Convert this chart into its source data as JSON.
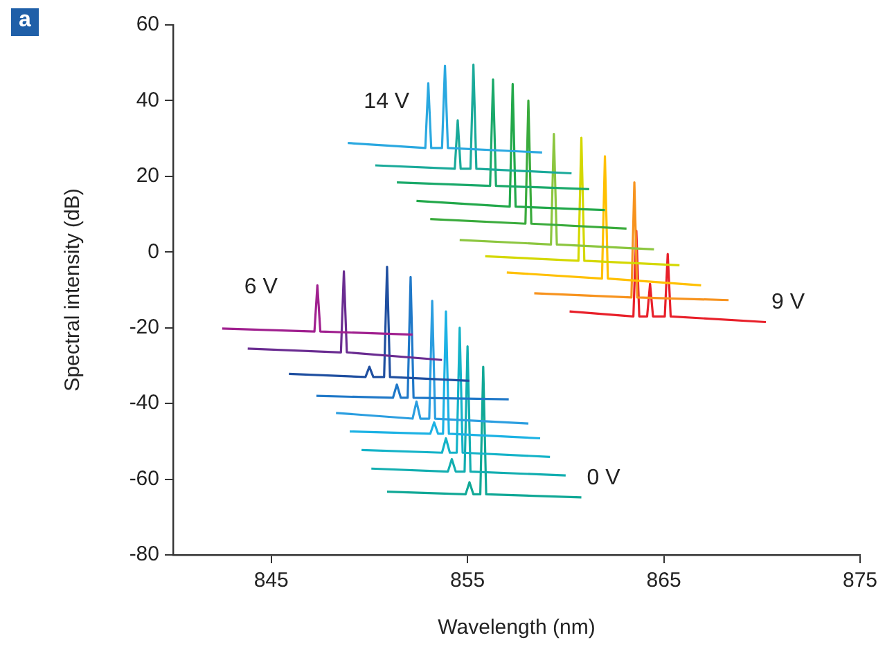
{
  "chart_data": {
    "type": "line",
    "xlabel": "Wavelength (nm)",
    "ylabel": "Spectral intensity (dB)",
    "xlim": [
      840,
      875
    ],
    "xticks": [
      845,
      855,
      865,
      875
    ],
    "ylim": [
      -80,
      60
    ],
    "yticks": [
      -80,
      -60,
      -40,
      -20,
      0,
      20,
      40,
      60
    ],
    "grid": false,
    "legend": false,
    "marker": "none",
    "line_style": "solid",
    "annotations": [
      "a"
    ],
    "series": [
      {
        "name": "6 V",
        "color": "#a0208f",
        "x": [
          842.5,
          847.2,
          847.35,
          847.5,
          852.2
        ],
        "values": [
          -20.2,
          -21,
          -8.8,
          -21,
          -21.8
        ]
      },
      {
        "color": "#6a2c91",
        "x": [
          843.8,
          848.55,
          848.7,
          848.85,
          853.7
        ],
        "values": [
          -25.5,
          -26.5,
          -5.1,
          -26.5,
          -28.5
        ]
      },
      {
        "color": "#1f4fa0",
        "x": [
          845.9,
          849.8,
          850.0,
          850.2,
          850.75,
          850.9,
          851.05,
          855.1
        ],
        "values": [
          -32.2,
          -33,
          -30.3,
          -33,
          -33,
          -3.9,
          -33,
          -34.0
        ]
      },
      {
        "color": "#1f78c8",
        "x": [
          847.3,
          851.2,
          851.4,
          851.6,
          851.95,
          852.1,
          852.25,
          857.1
        ],
        "values": [
          -38.0,
          -38.5,
          -35,
          -38.5,
          -38.5,
          -6.6,
          -38.5,
          -38.9
        ]
      },
      {
        "color": "#2b9ee0",
        "x": [
          848.3,
          852.2,
          852.4,
          852.6,
          853.05,
          853.2,
          853.35,
          858.1
        ],
        "values": [
          -42.5,
          -44,
          -39.5,
          -44,
          -44,
          -12.9,
          -44,
          -45.3
        ]
      },
      {
        "color": "#1cb2e4",
        "x": [
          849.0,
          853.1,
          853.3,
          853.5,
          853.75,
          853.9,
          854.05,
          858.7
        ],
        "values": [
          -47.4,
          -48,
          -45,
          -48,
          -48,
          -15.7,
          -48,
          -49.2
        ]
      },
      {
        "color": "#14b3c8",
        "x": [
          849.6,
          853.7,
          853.9,
          854.1,
          854.45,
          854.6,
          854.75,
          859.2
        ],
        "values": [
          -52.3,
          -53,
          -49.2,
          -53,
          -53,
          -20,
          -53,
          -54.1
        ]
      },
      {
        "color": "#12aeb0",
        "x": [
          850.1,
          854.0,
          854.2,
          854.4,
          854.85,
          855.0,
          855.15,
          860.0
        ],
        "values": [
          -57.2,
          -58,
          -54.7,
          -58,
          -58,
          -24.9,
          -58,
          -59.0
        ]
      },
      {
        "name": "0 V",
        "color": "#10a896",
        "x": [
          850.9,
          854.9,
          855.1,
          855.3,
          855.65,
          855.8,
          855.95,
          860.8
        ],
        "values": [
          -63.3,
          -64,
          -60.8,
          -64,
          -64,
          -30.3,
          -64,
          -64.8
        ]
      },
      {
        "name": "14 V",
        "color": "#2aa8e0",
        "x": [
          848.9,
          852.85,
          853.0,
          853.15,
          853.7,
          853.85,
          854.0,
          858.8
        ],
        "values": [
          28.8,
          27.5,
          44.6,
          27.5,
          27.5,
          49.2,
          27.5,
          26.3
        ]
      },
      {
        "color": "#1aaa9a",
        "x": [
          850.3,
          854.35,
          854.5,
          854.65,
          855.15,
          855.3,
          855.45,
          860.3
        ],
        "values": [
          22.9,
          22,
          34.8,
          22,
          22,
          49.5,
          22,
          20.8
        ]
      },
      {
        "color": "#1aa96a",
        "x": [
          851.4,
          856.15,
          856.3,
          856.45,
          861.2
        ],
        "values": [
          18.4,
          17.5,
          45.6,
          17.5,
          16.6
        ]
      },
      {
        "color": "#22a84a",
        "x": [
          852.4,
          857.15,
          857.3,
          857.45,
          862.0
        ],
        "values": [
          13.5,
          12,
          44.4,
          12,
          11.1
        ]
      },
      {
        "color": "#3aab3c",
        "x": [
          853.1,
          857.95,
          858.1,
          858.25,
          863.1
        ],
        "values": [
          8.7,
          7.5,
          40.0,
          7.5,
          6.2
        ]
      },
      {
        "color": "#8cc63f",
        "x": [
          854.6,
          859.25,
          859.4,
          859.55,
          864.5
        ],
        "values": [
          3.2,
          2,
          31.2,
          2,
          0.7
        ]
      },
      {
        "color": "#d4d800",
        "x": [
          855.9,
          860.65,
          860.8,
          860.95,
          865.8
        ],
        "values": [
          -1.1,
          -2.3,
          30.2,
          -2.3,
          -3.5
        ]
      },
      {
        "color": "#ffc000",
        "x": [
          857.0,
          861.85,
          862.0,
          862.15,
          866.9
        ],
        "values": [
          -5.4,
          -7,
          25.3,
          -7,
          -8.8
        ]
      },
      {
        "color": "#f7931e",
        "x": [
          858.4,
          863.35,
          863.5,
          863.65,
          868.3
        ],
        "values": [
          -10.9,
          -12,
          18.4,
          -12,
          -12.7
        ]
      },
      {
        "name": "9 V",
        "color": "#e8202a",
        "x": [
          860.2,
          863.45,
          863.6,
          863.75,
          864.15,
          864.3,
          864.45,
          865.05,
          865.2,
          865.35,
          870.2
        ],
        "values": [
          -15.7,
          -17,
          5.6,
          -17,
          -17,
          -8.4,
          -17,
          -17,
          -0.5,
          -17,
          -18.5
        ]
      }
    ]
  }
}
